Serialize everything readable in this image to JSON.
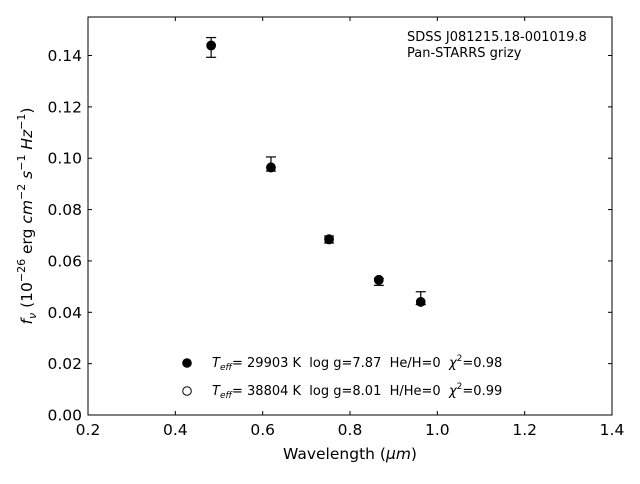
{
  "chart_data": {
    "type": "scatter",
    "xlabel_text": "Wavelength (",
    "xlabel_unit": "μm",
    "xlabel_close": ")",
    "ylabel": {
      "f": "f",
      "nu": "ν",
      "open": "(10",
      "exp1": "−26",
      "erg": " erg ",
      "cm": "cm",
      "exp2": "−2",
      "s": " s",
      "exp3": "−1",
      "hz": " Hz",
      "exp4": "−1",
      "close": ")"
    },
    "xlim": [
      0.2,
      1.4
    ],
    "ylim": [
      0.0,
      0.155
    ],
    "xticks": [
      0.2,
      0.4,
      0.6,
      0.8,
      1.0,
      1.2,
      1.4
    ],
    "xtick_labels": [
      "0.2",
      "0.4",
      "0.6",
      "0.8",
      "1.0",
      "1.2",
      "1.4"
    ],
    "yticks": [
      0.0,
      0.02,
      0.04,
      0.06,
      0.08,
      0.1,
      0.12,
      0.14
    ],
    "ytick_labels": [
      "0.00",
      "0.02",
      "0.04",
      "0.06",
      "0.08",
      "0.10",
      "0.12",
      "0.14"
    ],
    "grid": false,
    "annotation": [
      "SDSS J081215.18-001019.8",
      "Pan-STARRS grizy"
    ],
    "observed": {
      "x": [
        0.482,
        0.619,
        0.752,
        0.866,
        0.962
      ],
      "y": [
        0.1438,
        0.0965,
        0.0685,
        0.0523,
        0.0443
      ],
      "err_low": [
        0.0045,
        0.0015,
        0.0015,
        0.0018,
        0.0013
      ],
      "err_high": [
        0.0032,
        0.004,
        0.0012,
        0.0009,
        0.0037
      ]
    },
    "series": [
      {
        "marker": "filled-circle",
        "color": "#000000",
        "x": [
          0.482,
          0.619,
          0.752,
          0.866,
          0.962
        ],
        "y": [
          0.1438,
          0.0963,
          0.0683,
          0.0527,
          0.044
        ]
      },
      {
        "marker": "open-circle",
        "color": "#000000",
        "x": [
          0.482,
          0.619,
          0.752,
          0.866,
          0.962
        ],
        "y": [
          0.144,
          0.0965,
          0.0685,
          0.0525,
          0.0441
        ]
      }
    ],
    "legend": [
      {
        "marker": "filled-circle",
        "t": "T",
        "sub": "eff",
        "text1": "= 29903 K  log g=7.87  He/H=0  ",
        "chi": "χ",
        "sup": "2",
        "text2": "=0.98"
      },
      {
        "marker": "open-circle",
        "t": "T",
        "sub": "eff",
        "text1": "= 38804 K  log g=8.01  H/He=0  ",
        "chi": "χ",
        "sup": "2",
        "text2": "=0.99"
      }
    ],
    "legend_position": "lower-center"
  }
}
